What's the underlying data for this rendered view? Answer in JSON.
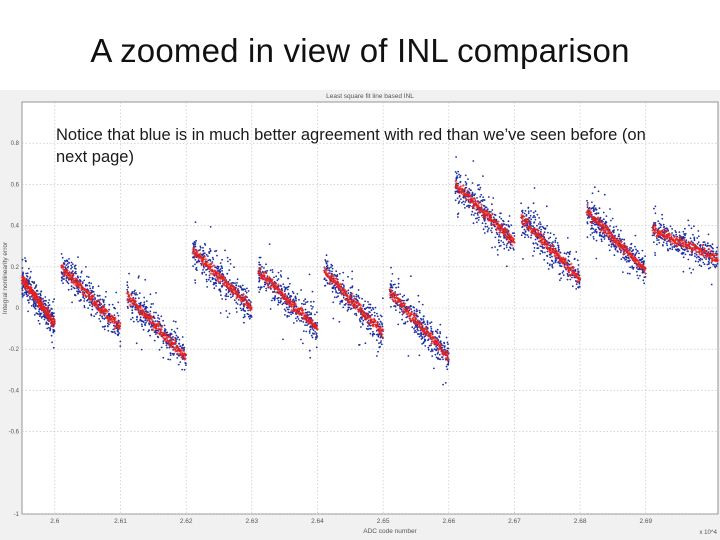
{
  "slide": {
    "title": "A zoomed in view of INL comparison",
    "note": "Notice that blue is in much better agreement with red than we’ve seen before (on next page)"
  },
  "chart_data": {
    "type": "scatter",
    "title": "Least square fit line based INL",
    "xlabel": "ADC code number",
    "ylabel": "Integral nonlinearity error",
    "x_exponent_label": "x 10^4",
    "xlim": [
      2.595,
      2.701
    ],
    "ylim": [
      -1.0,
      1.0
    ],
    "x_ticks": [
      {
        "value": 2.6,
        "label": "2.6"
      },
      {
        "value": 2.61,
        "label": "2.61"
      },
      {
        "value": 2.62,
        "label": "2.62"
      },
      {
        "value": 2.63,
        "label": "2.63"
      },
      {
        "value": 2.64,
        "label": "2.64"
      },
      {
        "value": 2.65,
        "label": "2.65"
      },
      {
        "value": 2.66,
        "label": "2.66"
      },
      {
        "value": 2.67,
        "label": "2.67"
      },
      {
        "value": 2.68,
        "label": "2.68"
      },
      {
        "value": 2.69,
        "label": "2.69"
      }
    ],
    "y_ticks": [
      {
        "value": 0.8,
        "label": "0.8"
      },
      {
        "value": 0.6,
        "label": "0.6"
      },
      {
        "value": 0.4,
        "label": "0.4"
      },
      {
        "value": 0.2,
        "label": "0.2"
      },
      {
        "value": 0,
        "label": "0"
      },
      {
        "value": -0.2,
        "label": "-0.2"
      },
      {
        "value": -0.4,
        "label": "-0.4"
      },
      {
        "value": -0.6,
        "label": "-0.6"
      },
      {
        "value": -1,
        "label": "-1"
      }
    ],
    "grid": true,
    "marker_colors": {
      "blue": "#1c2fa3",
      "red": "#e8201c"
    },
    "segments": [
      {
        "x_start": 2.595,
        "x_end": 2.6,
        "y_start": 0.14,
        "y_end": -0.08,
        "blue_spread": 0.12
      },
      {
        "x_start": 2.601,
        "x_end": 2.61,
        "y_start": 0.2,
        "y_end": -0.1,
        "blue_spread": 0.13
      },
      {
        "x_start": 2.611,
        "x_end": 2.62,
        "y_start": 0.06,
        "y_end": -0.24,
        "blue_spread": 0.14
      },
      {
        "x_start": 2.621,
        "x_end": 2.63,
        "y_start": 0.28,
        "y_end": 0.0,
        "blue_spread": 0.15
      },
      {
        "x_start": 2.631,
        "x_end": 2.64,
        "y_start": 0.18,
        "y_end": -0.1,
        "blue_spread": 0.14
      },
      {
        "x_start": 2.641,
        "x_end": 2.65,
        "y_start": 0.18,
        "y_end": -0.12,
        "blue_spread": 0.14
      },
      {
        "x_start": 2.651,
        "x_end": 2.66,
        "y_start": 0.08,
        "y_end": -0.24,
        "blue_spread": 0.14
      },
      {
        "x_start": 2.661,
        "x_end": 2.67,
        "y_start": 0.6,
        "y_end": 0.32,
        "blue_spread": 0.15
      },
      {
        "x_start": 2.671,
        "x_end": 2.68,
        "y_start": 0.44,
        "y_end": 0.14,
        "blue_spread": 0.14
      },
      {
        "x_start": 2.681,
        "x_end": 2.69,
        "y_start": 0.47,
        "y_end": 0.18,
        "blue_spread": 0.14
      },
      {
        "x_start": 2.691,
        "x_end": 2.701,
        "y_start": 0.38,
        "y_end": 0.24,
        "blue_spread": 0.12
      }
    ]
  }
}
